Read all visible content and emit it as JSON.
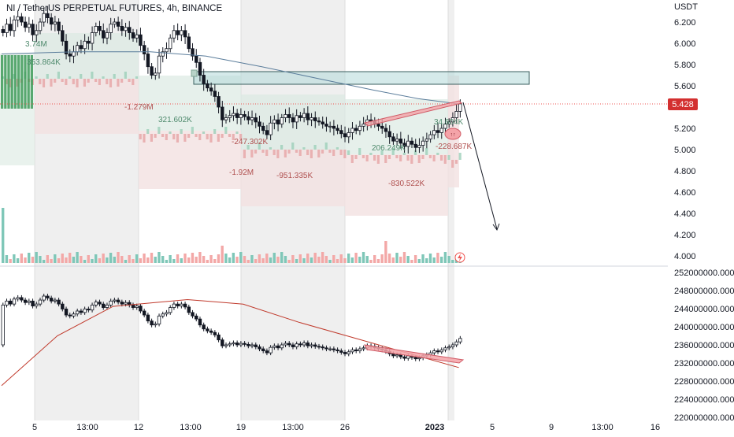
{
  "header": {
    "title": "NI / TetherUS PERPETUAL FUTURES, 4h, BINANCE"
  },
  "price_axis": {
    "currency": "USDT",
    "ticks": [
      "6.200",
      "6.000",
      "5.800",
      "5.600",
      "5.400",
      "5.200",
      "5.000",
      "4.800",
      "4.600",
      "4.400",
      "4.200",
      "4.000"
    ],
    "last_price": "5.428"
  },
  "indicator_axis": {
    "ticks": [
      "252000000.000",
      "248000000.000",
      "244000000.000",
      "240000000.000",
      "236000000.000",
      "232000000.000",
      "228000000.000",
      "224000000.000",
      "220000000.000"
    ]
  },
  "time_axis": {
    "ticks": [
      "5",
      "13:00",
      "12",
      "13:00",
      "19",
      "13:00",
      "26",
      "2023",
      "5",
      "9",
      "13:00",
      "16"
    ]
  },
  "annotations": [
    "3.74M",
    "353.864K",
    "-1.279M",
    "321.602K",
    "-247.302K",
    "-1.92M",
    "-951.335K",
    "206.249K",
    "-830.522K",
    "34.604K",
    "-228.687K"
  ],
  "colors": {
    "up": "#26a69a",
    "down": "#ef5350",
    "candle": "#131722",
    "ma": "#5b7d9b",
    "indicator_ma": "#c0392b",
    "zone": "#b2d8d8",
    "highlight": "#f4a3a8",
    "last_price_bg": "#d32f2f",
    "lightning_icon": "#ef5350"
  },
  "chart_data": [
    {
      "type": "candlestick",
      "title": "NI / TetherUS PERPETUAL FUTURES, 4h, BINANCE",
      "ylabel": "USDT",
      "ylim": [
        3.95,
        6.32
      ],
      "x_ticks": [
        "5",
        "13:00",
        "12",
        "13:00",
        "19",
        "13:00",
        "26",
        "2023",
        "5",
        "9",
        "13:00",
        "16"
      ],
      "close": [
        6.1,
        6.18,
        6.12,
        6.22,
        6.25,
        6.2,
        6.15,
        6.18,
        6.08,
        6.12,
        6.2,
        6.28,
        6.24,
        6.18,
        6.2,
        6.12,
        6.02,
        5.9,
        5.88,
        5.92,
        5.98,
        5.95,
        6.02,
        6.0,
        6.1,
        6.16,
        6.12,
        6.05,
        6.1,
        6.18,
        6.2,
        6.16,
        6.12,
        6.15,
        6.1,
        6.05,
        6.08,
        5.98,
        5.9,
        5.78,
        5.7,
        5.72,
        5.88,
        5.92,
        5.95,
        6.05,
        6.12,
        6.08,
        6.12,
        6.06,
        5.95,
        5.88,
        5.82,
        5.7,
        5.62,
        5.58,
        5.55,
        5.5,
        5.4,
        5.28,
        5.3,
        5.32,
        5.34,
        5.3,
        5.33,
        5.31,
        5.28,
        5.3,
        5.26,
        5.22,
        5.18,
        5.14,
        5.25,
        5.28,
        5.24,
        5.3,
        5.33,
        5.3,
        5.26,
        5.32,
        5.3,
        5.34,
        5.28,
        5.3,
        5.27,
        5.26,
        5.24,
        5.22,
        5.22,
        5.2,
        5.18,
        5.15,
        5.12,
        5.16,
        5.2,
        5.18,
        5.22,
        5.24,
        5.28,
        5.27,
        5.24,
        5.22,
        5.2,
        5.17,
        5.12,
        5.08,
        5.1,
        5.06,
        5.03,
        5.08,
        5.05,
        5.02,
        5.04,
        5.08,
        5.1,
        5.14,
        5.18,
        5.16,
        5.2,
        5.24,
        5.26,
        5.3,
        5.36,
        5.43
      ],
      "moving_average": [
        {
          "x": 0,
          "y": 5.9
        },
        {
          "x": 20,
          "y": 5.92
        },
        {
          "x": 40,
          "y": 5.92
        },
        {
          "x": 55,
          "y": 5.88
        },
        {
          "x": 70,
          "y": 5.78
        },
        {
          "x": 85,
          "y": 5.67
        },
        {
          "x": 100,
          "y": 5.56
        },
        {
          "x": 112,
          "y": 5.48
        },
        {
          "x": 123,
          "y": 5.43
        }
      ],
      "zone": {
        "price_low": 5.63,
        "price_high": 5.74
      },
      "last_price": 5.428
    },
    {
      "type": "line",
      "ylim": [
        219500000,
        252500000
      ],
      "y_ticks": [
        252000000,
        248000000,
        244000000,
        240000000,
        236000000,
        232000000,
        228000000,
        224000000,
        220000000
      ],
      "series_start": 236000000,
      "moving_average": [
        {
          "x": 0,
          "y": 227000000
        },
        {
          "x": 15,
          "y": 238000000
        },
        {
          "x": 30,
          "y": 244500000
        },
        {
          "x": 50,
          "y": 246000000
        },
        {
          "x": 65,
          "y": 245000000
        },
        {
          "x": 80,
          "y": 241000000
        },
        {
          "x": 95,
          "y": 237500000
        },
        {
          "x": 110,
          "y": 234000000
        },
        {
          "x": 123,
          "y": 231000000
        }
      ]
    }
  ]
}
